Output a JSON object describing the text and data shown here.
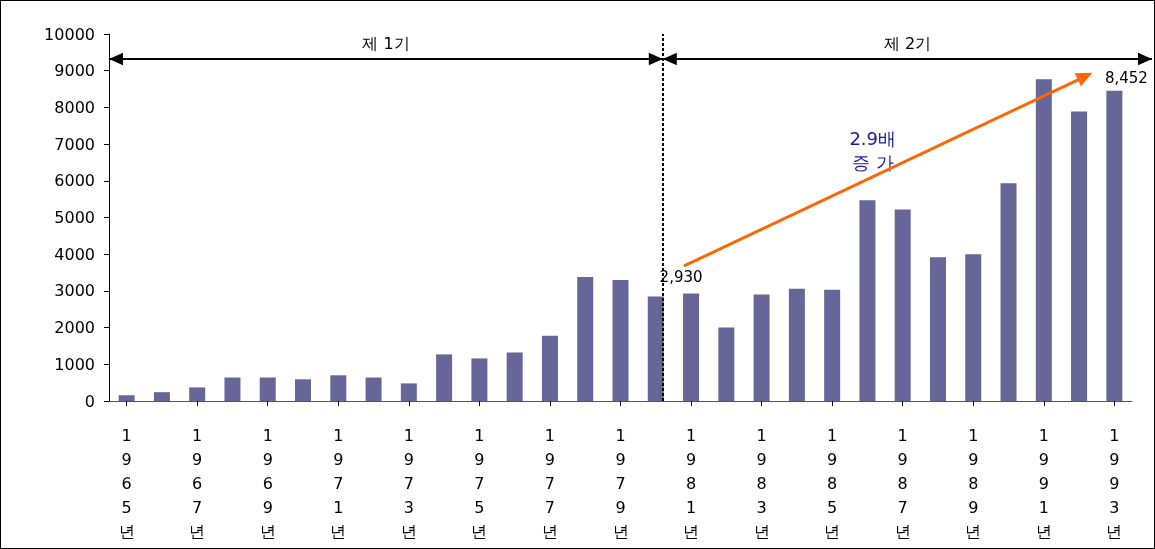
{
  "chart_data": {
    "type": "bar",
    "x": [
      1965,
      1966,
      1967,
      1968,
      1969,
      1970,
      1971,
      1972,
      1973,
      1974,
      1975,
      1976,
      1977,
      1978,
      1979,
      1980,
      1981,
      1982,
      1983,
      1984,
      1985,
      1986,
      1987,
      1988,
      1989,
      1990,
      1991,
      1992,
      1993
    ],
    "xlim": [
      1964.5,
      1993.5
    ],
    "xticks": [
      {
        "value": 1965,
        "label": "1965년"
      },
      {
        "value": 1967,
        "label": "1967년"
      },
      {
        "value": 1969,
        "label": "1969년"
      },
      {
        "value": 1971,
        "label": "1971년"
      },
      {
        "value": 1973,
        "label": "1973년"
      },
      {
        "value": 1975,
        "label": "1975년"
      },
      {
        "value": 1977,
        "label": "1977년"
      },
      {
        "value": 1979,
        "label": "1979년"
      },
      {
        "value": 1981,
        "label": "1981년"
      },
      {
        "value": 1983,
        "label": "1983년"
      },
      {
        "value": 1985,
        "label": "1985년"
      },
      {
        "value": 1987,
        "label": "1987년"
      },
      {
        "value": 1989,
        "label": "1989년"
      },
      {
        "value": 1991,
        "label": "1991년"
      },
      {
        "value": 1993,
        "label": "1993년"
      }
    ],
    "values": [
      160,
      240,
      370,
      640,
      640,
      590,
      700,
      640,
      480,
      1270,
      1160,
      1320,
      1780,
      3380,
      3300,
      2850,
      2930,
      2000,
      2900,
      3060,
      3030,
      5470,
      5220,
      3920,
      4000,
      5930,
      8770,
      7890,
      8452
    ],
    "value_labels": [
      null,
      null,
      null,
      null,
      null,
      null,
      null,
      null,
      null,
      null,
      null,
      null,
      null,
      null,
      null,
      null,
      "2,930",
      null,
      null,
      null,
      null,
      null,
      null,
      null,
      null,
      null,
      null,
      null,
      "8,452"
    ],
    "color": "#666699",
    "ylim": [
      0,
      10000
    ],
    "yticks": [
      0,
      1000,
      2000,
      3000,
      4000,
      5000,
      6000,
      7000,
      8000,
      9000,
      10000
    ],
    "ref_lines": [
      {
        "axis": "x",
        "value": 1980.2,
        "color": "#000000",
        "line_style": "dashed"
      }
    ],
    "annotations": [
      "제 1기",
      "제 2기",
      "2.9배\n증 가"
    ]
  }
}
